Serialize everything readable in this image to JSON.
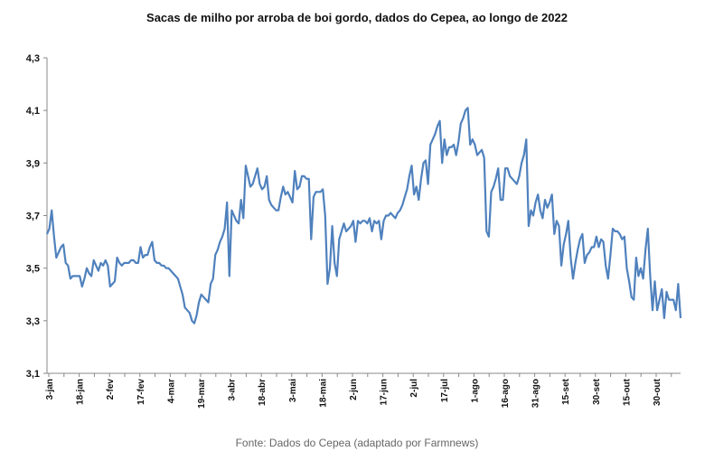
{
  "chart_data": {
    "type": "line",
    "title": "Sacas de milho por arroba de boi gordo, dados do Cepea, ao longo de 2022",
    "source": "Fonte: Dados do Cepea (adaptado por Farmnews)",
    "xlabel": "",
    "ylabel": "",
    "ylim": [
      3.1,
      4.3
    ],
    "yticks": [
      "3,1",
      "3,3",
      "3,5",
      "3,7",
      "3,9",
      "4,1",
      "4,3"
    ],
    "xticks": [
      "3-jan",
      "18-jan",
      "2-fev",
      "17-fev",
      "4-mar",
      "19-mar",
      "3-abr",
      "18-abr",
      "3-mai",
      "18-mai",
      "2-jun",
      "17-jun",
      "2-jul",
      "17-jul",
      "1-ago",
      "16-ago",
      "31-ago",
      "15-set",
      "30-set",
      "15-out",
      "30-out"
    ],
    "grid": false,
    "legend": "none",
    "series": [
      {
        "name": "Sacas de milho por arroba",
        "color": "#4f81bd",
        "values": [
          3.63,
          3.65,
          3.72,
          3.62,
          3.54,
          3.56,
          3.58,
          3.59,
          3.52,
          3.51,
          3.46,
          3.47,
          3.47,
          3.47,
          3.47,
          3.43,
          3.46,
          3.5,
          3.48,
          3.47,
          3.53,
          3.51,
          3.49,
          3.52,
          3.51,
          3.53,
          3.51,
          3.43,
          3.44,
          3.45,
          3.54,
          3.52,
          3.51,
          3.52,
          3.52,
          3.52,
          3.53,
          3.53,
          3.52,
          3.52,
          3.58,
          3.54,
          3.55,
          3.55,
          3.58,
          3.6,
          3.53,
          3.52,
          3.52,
          3.51,
          3.51,
          3.5,
          3.5,
          3.49,
          3.48,
          3.47,
          3.46,
          3.43,
          3.4,
          3.35,
          3.34,
          3.33,
          3.3,
          3.29,
          3.32,
          3.37,
          3.4,
          3.39,
          3.38,
          3.37,
          3.44,
          3.46,
          3.55,
          3.57,
          3.6,
          3.62,
          3.65,
          3.75,
          3.47,
          3.72,
          3.7,
          3.68,
          3.67,
          3.76,
          3.69,
          3.89,
          3.85,
          3.81,
          3.82,
          3.85,
          3.88,
          3.82,
          3.8,
          3.81,
          3.85,
          3.76,
          3.74,
          3.73,
          3.72,
          3.72,
          3.77,
          3.81,
          3.78,
          3.79,
          3.77,
          3.75,
          3.87,
          3.8,
          3.81,
          3.85,
          3.85,
          3.84,
          3.84,
          3.61,
          3.77,
          3.79,
          3.79,
          3.79,
          3.8,
          3.7,
          3.44,
          3.5,
          3.66,
          3.52,
          3.47,
          3.61,
          3.64,
          3.67,
          3.64,
          3.65,
          3.66,
          3.68,
          3.6,
          3.68,
          3.67,
          3.68,
          3.68,
          3.67,
          3.69,
          3.64,
          3.68,
          3.67,
          3.68,
          3.61,
          3.68,
          3.7,
          3.7,
          3.71,
          3.7,
          3.69,
          3.71,
          3.72,
          3.74,
          3.77,
          3.8,
          3.85,
          3.89,
          3.78,
          3.81,
          3.76,
          3.84,
          3.9,
          3.91,
          3.82,
          3.97,
          3.99,
          4.01,
          4.04,
          4.06,
          3.9,
          3.99,
          3.93,
          3.96,
          3.96,
          3.97,
          3.93,
          3.98,
          4.05,
          4.07,
          4.1,
          4.11,
          3.97,
          3.99,
          3.97,
          3.93,
          3.94,
          3.95,
          3.92,
          3.64,
          3.62,
          3.79,
          3.81,
          3.84,
          3.88,
          3.76,
          3.76,
          3.88,
          3.88,
          3.85,
          3.84,
          3.83,
          3.82,
          3.85,
          3.9,
          3.93,
          3.99,
          3.66,
          3.72,
          3.7,
          3.75,
          3.78,
          3.72,
          3.69,
          3.76,
          3.73,
          3.75,
          3.78,
          3.63,
          3.68,
          3.66,
          3.51,
          3.59,
          3.63,
          3.68,
          3.54,
          3.46,
          3.52,
          3.57,
          3.61,
          3.63,
          3.52,
          3.55,
          3.56,
          3.58,
          3.58,
          3.62,
          3.58,
          3.61,
          3.6,
          3.51,
          3.46,
          3.55,
          3.65,
          3.64,
          3.64,
          3.63,
          3.61,
          3.62,
          3.5,
          3.45,
          3.39,
          3.38,
          3.54,
          3.47,
          3.5,
          3.46,
          3.57,
          3.65,
          3.47,
          3.34,
          3.45,
          3.34,
          3.38,
          3.42,
          3.31,
          3.41,
          3.38,
          3.38,
          3.38,
          3.34,
          3.44,
          3.31
        ]
      }
    ]
  }
}
